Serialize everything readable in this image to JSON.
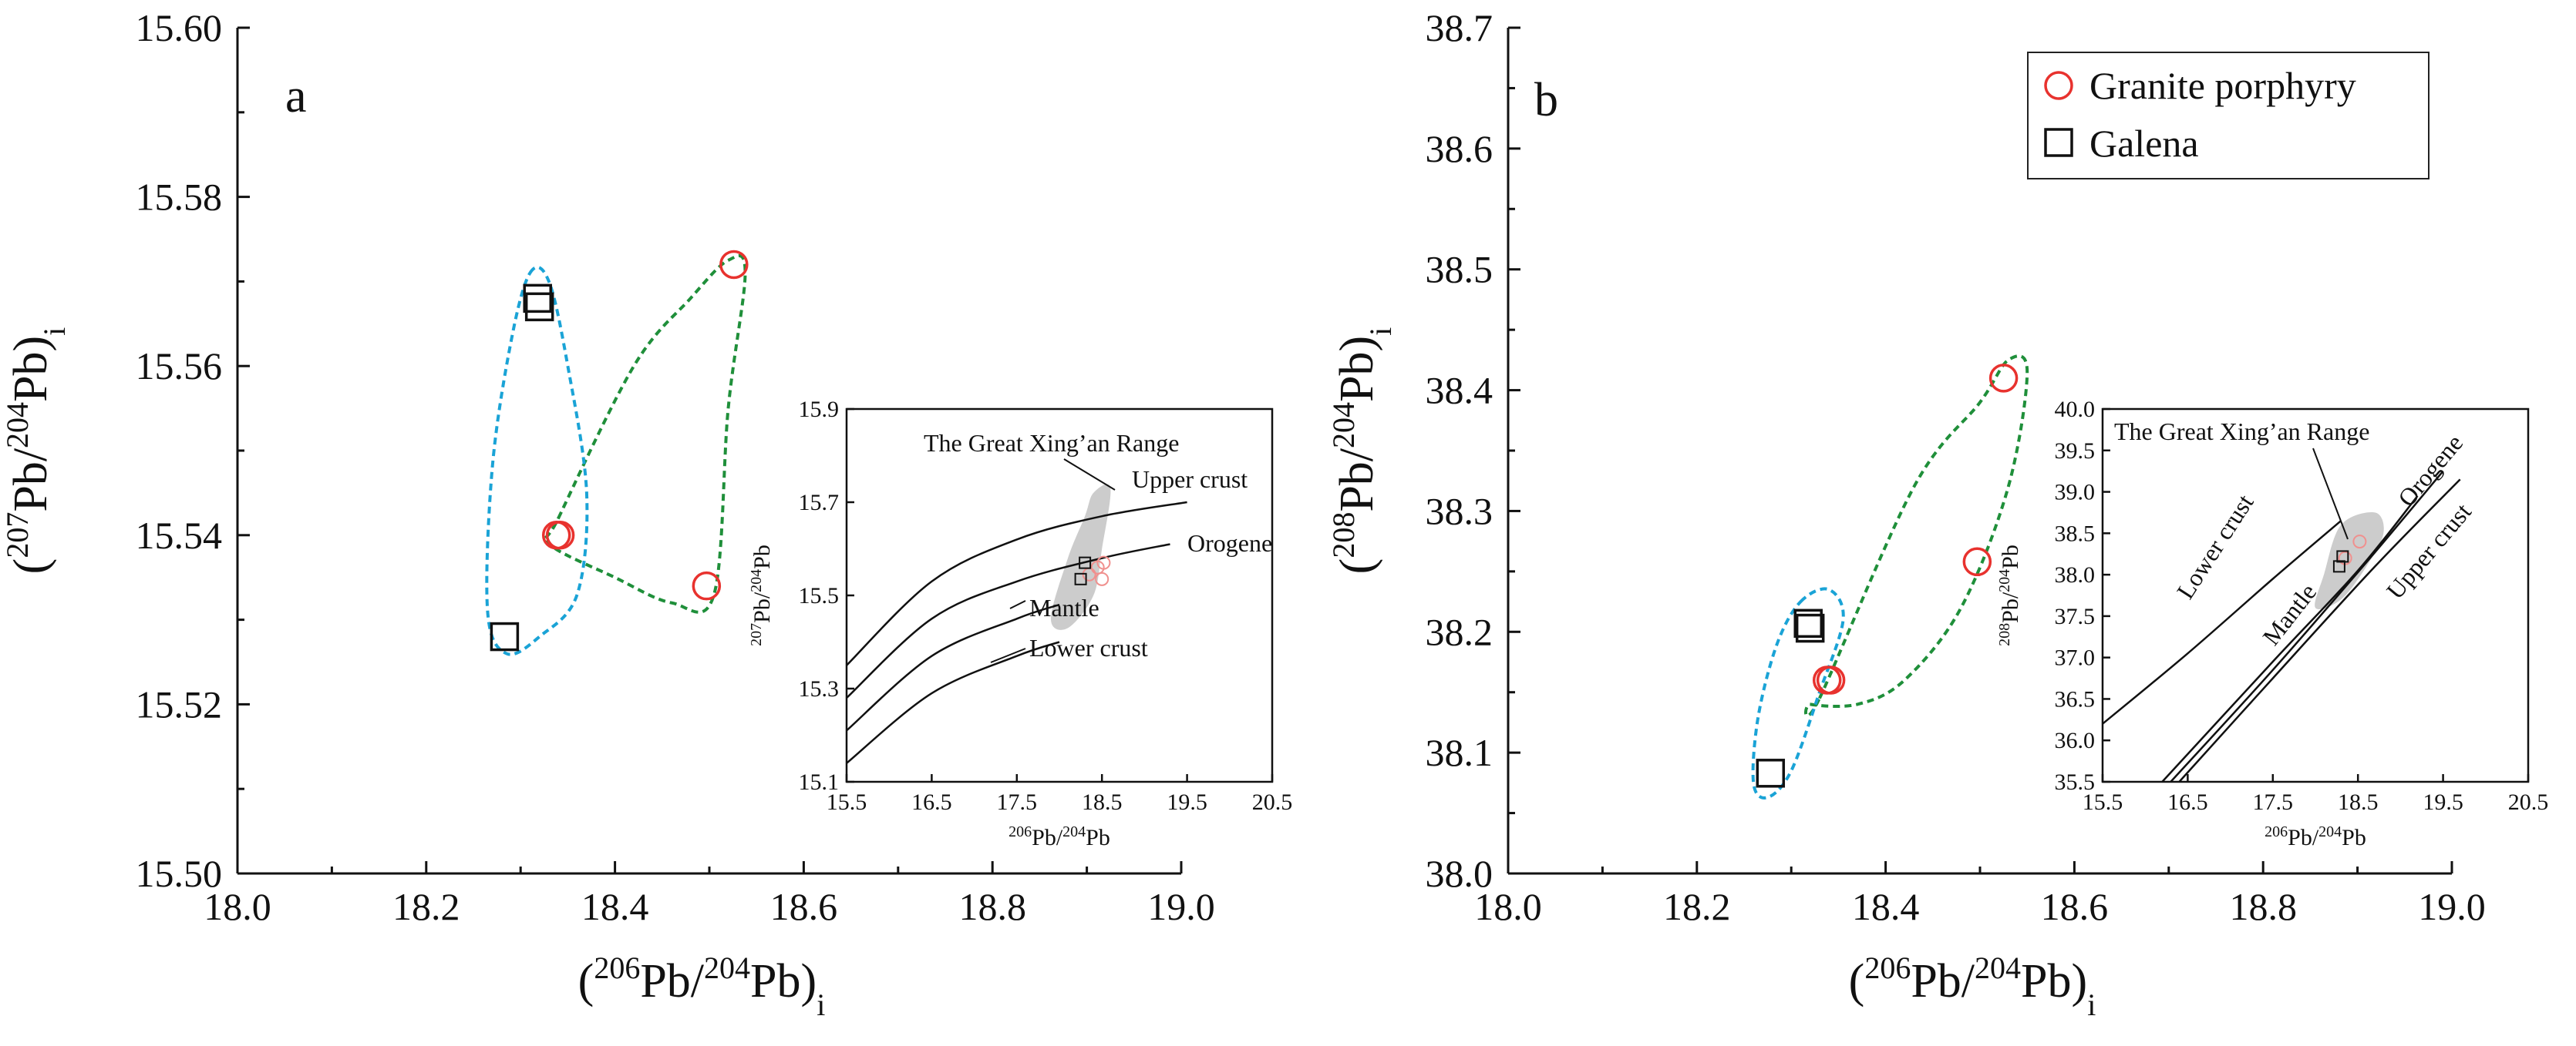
{
  "figure": {
    "legend": {
      "placement": "top-right of panel b",
      "items": [
        {
          "label": "Granite porphyry",
          "marker": "circle",
          "color": "#e8322e"
        },
        {
          "label": "Galena",
          "marker": "square",
          "color": "#111111"
        }
      ]
    },
    "colors": {
      "granite": "#e8322e",
      "galena": "#111111",
      "granite_envelope": "#1f8f3a",
      "galena_envelope": "#1aa3d6",
      "range_field": "#cccccc",
      "inset_granite": "#f0908e"
    }
  },
  "chart_data": [
    {
      "type": "scatter",
      "panel_label": "a",
      "xlabel": {
        "pre": "(",
        "sup": "206",
        "mid": "Pb/",
        "sup2": "204",
        "post": "Pb)",
        "sub": "i"
      },
      "ylabel": {
        "pre": "(",
        "sup": "207",
        "mid": "Pb/",
        "sup2": "204",
        "post": "Pb)",
        "sub": "i"
      },
      "xlim": [
        18.0,
        19.0
      ],
      "ylim": [
        15.5,
        15.6
      ],
      "xticks": [
        "18.0",
        "18.2",
        "18.4",
        "18.6",
        "18.8",
        "19.0"
      ],
      "yticks": [
        "15.50",
        "15.52",
        "15.54",
        "15.56",
        "15.58",
        "15.60"
      ],
      "series": [
        {
          "name": "Granite porphyry",
          "points": [
            [
              18.526,
              15.572
            ],
            [
              18.338,
              15.54
            ],
            [
              18.342,
              15.54
            ],
            [
              18.497,
              15.534
            ]
          ]
        },
        {
          "name": "Galena",
          "points": [
            [
              18.318,
              15.568
            ],
            [
              18.32,
              15.567
            ],
            [
              18.283,
              15.528
            ]
          ]
        }
      ],
      "inset": {
        "type": "line",
        "xlabel": {
          "sup": "206",
          "base": "Pb/",
          "sup2": "204",
          "post": "Pb"
        },
        "ylabel": {
          "sup": "207",
          "base": "Pb/",
          "sup2": "204",
          "post": "Pb"
        },
        "xlim": [
          15.5,
          20.5
        ],
        "ylim": [
          15.1,
          15.9
        ],
        "xticks": [
          "15.5",
          "16.5",
          "17.5",
          "18.5",
          "19.5",
          "20.5"
        ],
        "yticks": [
          "15.1",
          "15.3",
          "15.5",
          "15.7",
          "15.9"
        ],
        "curves": [
          {
            "name": "Upper crust",
            "points": [
              [
                15.5,
                15.35
              ],
              [
                16.5,
                15.53
              ],
              [
                17.5,
                15.62
              ],
              [
                18.5,
                15.67
              ],
              [
                19.5,
                15.7
              ]
            ]
          },
          {
            "name": "Orogene",
            "points": [
              [
                15.5,
                15.28
              ],
              [
                16.5,
                15.45
              ],
              [
                17.5,
                15.53
              ],
              [
                18.5,
                15.58
              ],
              [
                19.3,
                15.61
              ]
            ]
          },
          {
            "name": "Mantle",
            "points": [
              [
                15.5,
                15.21
              ],
              [
                16.5,
                15.37
              ],
              [
                17.5,
                15.45
              ],
              [
                18.0,
                15.48
              ]
            ]
          },
          {
            "name": "Lower crust",
            "points": [
              [
                15.5,
                15.14
              ],
              [
                16.5,
                15.29
              ],
              [
                17.5,
                15.37
              ],
              [
                18.0,
                15.4
              ]
            ]
          }
        ],
        "field_label": "The Great Xing’an Range",
        "field": [
          [
            18.4,
            15.72
          ],
          [
            18.6,
            15.73
          ],
          [
            18.5,
            15.6
          ],
          [
            18.4,
            15.5
          ],
          [
            18.1,
            15.43
          ],
          [
            17.9,
            15.45
          ],
          [
            18.1,
            15.58
          ],
          [
            18.3,
            15.67
          ]
        ],
        "granite_points": [
          [
            18.35,
            15.545
          ],
          [
            18.5,
            15.535
          ],
          [
            18.52,
            15.57
          ],
          [
            18.45,
            15.56
          ]
        ],
        "galena_points": [
          [
            18.3,
            15.57
          ],
          [
            18.25,
            15.535
          ]
        ]
      }
    },
    {
      "type": "scatter",
      "panel_label": "b",
      "xlabel": {
        "pre": "(",
        "sup": "206",
        "mid": "Pb/",
        "sup2": "204",
        "post": "Pb)",
        "sub": "i"
      },
      "ylabel": {
        "pre": "(",
        "sup": "208",
        "mid": "Pb/",
        "sup2": "204",
        "post": "Pb)",
        "sub": "i"
      },
      "xlim": [
        18.0,
        19.0
      ],
      "ylim": [
        38.0,
        38.7
      ],
      "xticks": [
        "18.0",
        "18.2",
        "18.4",
        "18.6",
        "18.8",
        "19.0"
      ],
      "yticks": [
        "38.0",
        "38.1",
        "38.2",
        "38.3",
        "38.4",
        "38.5",
        "38.6",
        "38.7"
      ],
      "series": [
        {
          "name": "Granite porphyry",
          "points": [
            [
              18.525,
              38.41
            ],
            [
              18.497,
              38.258
            ],
            [
              18.338,
              38.16
            ],
            [
              18.342,
              38.16
            ]
          ]
        },
        {
          "name": "Galena",
          "points": [
            [
              18.318,
              38.207
            ],
            [
              18.32,
              38.203
            ],
            [
              18.278,
              38.083
            ]
          ]
        }
      ],
      "inset": {
        "type": "line",
        "xlabel": {
          "sup": "206",
          "base": "Pb/",
          "sup2": "204",
          "post": "Pb"
        },
        "ylabel": {
          "sup": "208",
          "base": "Pb/",
          "sup2": "204",
          "post": "Pb"
        },
        "xlim": [
          15.5,
          20.5
        ],
        "ylim": [
          35.5,
          40.0
        ],
        "xticks": [
          "15.5",
          "16.5",
          "17.5",
          "18.5",
          "19.5",
          "20.5"
        ],
        "yticks": [
          "35.5",
          "36.0",
          "36.5",
          "37.0",
          "37.5",
          "38.0",
          "38.5",
          "39.0",
          "39.5",
          "40.0"
        ],
        "curves": [
          {
            "name": "Lower crust",
            "points": [
              [
                15.5,
                36.2
              ],
              [
                16.5,
                37.05
              ],
              [
                17.5,
                37.95
              ],
              [
                18.3,
                38.65
              ]
            ]
          },
          {
            "name": "Mantle",
            "points": [
              [
                16.2,
                35.5
              ],
              [
                17.5,
                36.95
              ],
              [
                18.5,
                38.05
              ],
              [
                19.2,
                38.95
              ]
            ]
          },
          {
            "name": "Orogene",
            "points": [
              [
                16.3,
                35.5
              ],
              [
                17.5,
                36.85
              ],
              [
                18.6,
                38.15
              ],
              [
                19.5,
                39.25
              ]
            ]
          },
          {
            "name": "Upper crust",
            "points": [
              [
                16.4,
                35.5
              ],
              [
                17.5,
                36.75
              ],
              [
                18.7,
                38.1
              ],
              [
                19.7,
                39.15
              ]
            ]
          }
        ],
        "field_label": "The Great Xing’an Range",
        "field": [
          [
            18.3,
            38.6
          ],
          [
            18.7,
            38.75
          ],
          [
            18.8,
            38.5
          ],
          [
            18.6,
            38.1
          ],
          [
            18.3,
            37.7
          ],
          [
            18.0,
            37.6
          ],
          [
            18.1,
            38.0
          ]
        ],
        "granite_points": [
          [
            18.35,
            38.2
          ],
          [
            18.52,
            38.4
          ]
        ],
        "galena_points": [
          [
            18.32,
            38.22
          ],
          [
            18.28,
            38.1
          ]
        ]
      }
    }
  ]
}
